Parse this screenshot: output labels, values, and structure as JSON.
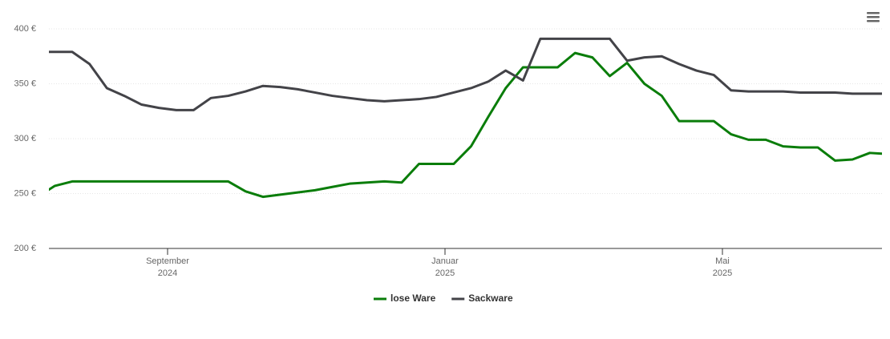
{
  "chart_data": {
    "type": "line",
    "x": [
      "2024-07",
      "2024-07",
      "2024-07",
      "2024-07",
      "2024-08",
      "2024-08",
      "2024-08",
      "2024-08",
      "2024-09",
      "2024-09",
      "2024-09",
      "2024-09",
      "2024-10",
      "2024-10",
      "2024-10",
      "2024-10",
      "2024-11",
      "2024-11",
      "2024-11",
      "2024-11",
      "2024-12",
      "2024-12",
      "2024-12",
      "2024-12",
      "2025-01",
      "2025-01",
      "2025-01",
      "2025-01",
      "2025-02",
      "2025-02",
      "2025-02",
      "2025-02",
      "2025-03",
      "2025-03",
      "2025-03",
      "2025-03",
      "2025-04",
      "2025-04",
      "2025-04",
      "2025-04",
      "2025-05",
      "2025-05",
      "2025-05",
      "2025-05",
      "2025-06",
      "2025-06",
      "2025-06",
      "2025-06",
      "2025-07",
      "2025-07",
      "2025-07",
      "2025-07"
    ],
    "series": [
      {
        "name": "lose Ware",
        "color": "#0a7d0a",
        "values": [
          247,
          257,
          261,
          261,
          261,
          261,
          261,
          261,
          261,
          261,
          261,
          261,
          252,
          247,
          249,
          251,
          253,
          256,
          259,
          260,
          261,
          260,
          277,
          277,
          277,
          293,
          320,
          346,
          365,
          365,
          365,
          378,
          374,
          357,
          369,
          350,
          339,
          316,
          316,
          316,
          304,
          299,
          299,
          293,
          292,
          292,
          280,
          281,
          287,
          286,
          286,
          286
        ]
      },
      {
        "name": "Sackware",
        "color": "#434348",
        "values": [
          379,
          379,
          379,
          368,
          346,
          339,
          331,
          328,
          326,
          326,
          337,
          339,
          343,
          348,
          347,
          345,
          342,
          339,
          337,
          335,
          334,
          335,
          336,
          338,
          342,
          346,
          352,
          362,
          353,
          391,
          391,
          391,
          391,
          391,
          371,
          374,
          375,
          368,
          362,
          358,
          344,
          343,
          343,
          343,
          342,
          342,
          342,
          341,
          341,
          341,
          341,
          341
        ]
      }
    ],
    "ylim": [
      200,
      400
    ],
    "yticks": [
      {
        "value": 200,
        "label": "200 €"
      },
      {
        "value": 250,
        "label": "250 €"
      },
      {
        "value": 300,
        "label": "300 €"
      },
      {
        "value": 350,
        "label": "350 €"
      },
      {
        "value": 400,
        "label": "400 €"
      }
    ],
    "xticks": [
      {
        "value": "2024-09",
        "label": [
          "September",
          "2024"
        ]
      },
      {
        "value": "2025-01",
        "label": [
          "Januar",
          "2025"
        ]
      },
      {
        "value": "2025-05",
        "label": [
          "Mai",
          "2025"
        ]
      }
    ],
    "grid": true
  }
}
